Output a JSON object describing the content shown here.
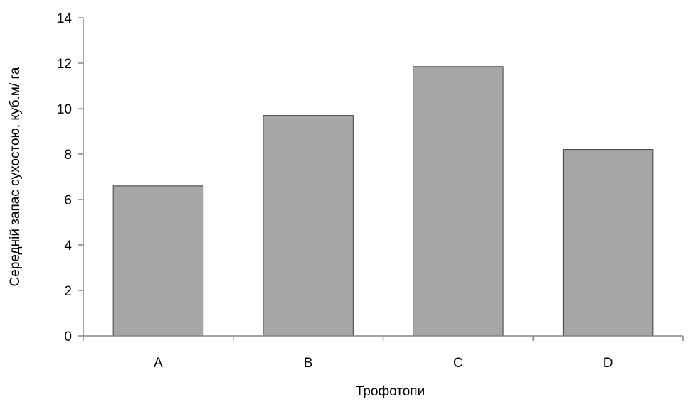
{
  "chart_data": {
    "type": "bar",
    "title": "",
    "xlabel": "Трофотопи",
    "ylabel": "Середній запас сухостою, куб.м/ га",
    "categories": [
      "A",
      "B",
      "C",
      "D"
    ],
    "values": [
      6.6,
      9.7,
      11.85,
      8.2
    ],
    "ylim": [
      0,
      14
    ],
    "yticks": [
      0,
      2,
      4,
      6,
      8,
      10,
      12,
      14
    ],
    "grid": false,
    "legend": "none",
    "bar_color": "#a6a6a6",
    "bar_stroke": "#404040",
    "axis_color": "#868686"
  }
}
